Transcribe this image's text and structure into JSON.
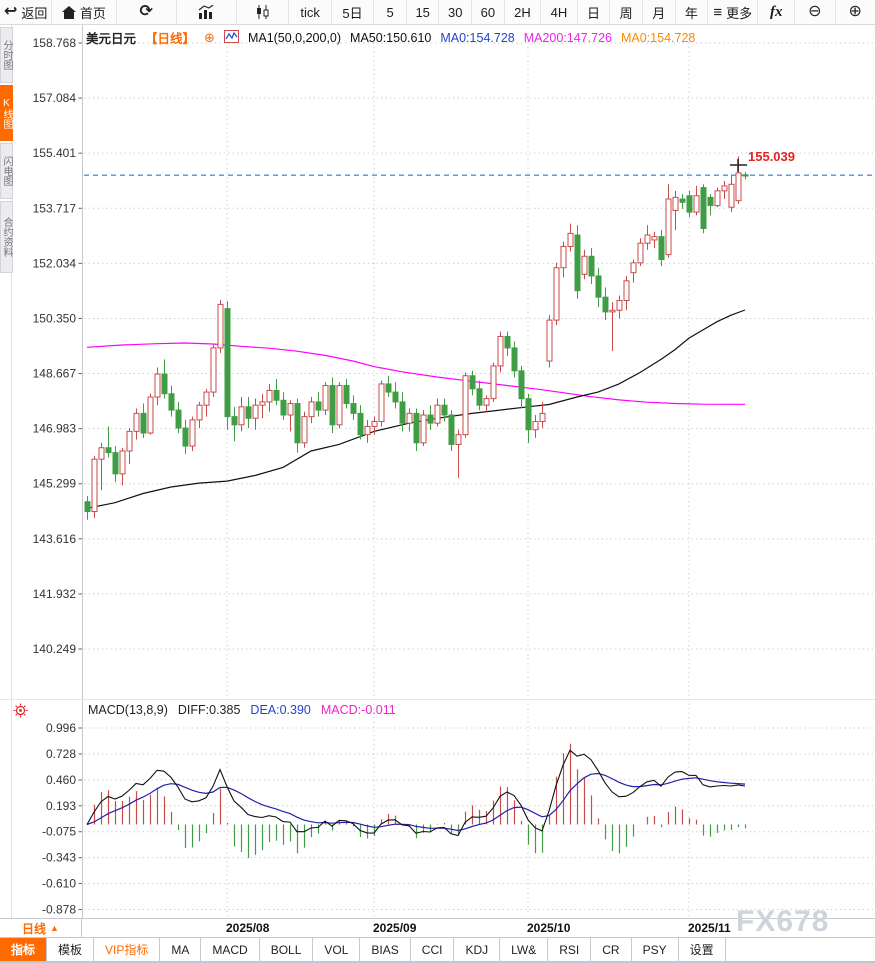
{
  "app": {
    "title": "USDJPY daily candlestick chart"
  },
  "colors": {
    "accent_orange": "#ff6a00",
    "candle_up": "#cb4a4a",
    "candle_down": "#3f9e44",
    "ma50_line": "#111111",
    "ma200_line": "#ff00ff",
    "diff_line": "#111111",
    "dea_line": "#2222aa",
    "price_line_blue": "#4a90e2",
    "price_label_red": "#e22222",
    "grid": "#d0d0d0",
    "watermark": "#cdd4dc"
  },
  "toolbar": {
    "items": [
      {
        "name": "back-button",
        "icon": "back-arrow-icon",
        "label": "返回"
      },
      {
        "name": "home-button",
        "icon": "home-icon",
        "label": "首页"
      },
      {
        "name": "refresh-button",
        "icon": "refresh-icon",
        "label": ""
      },
      {
        "name": "bar-chart-view-button",
        "icon": "bar-chart-icon",
        "label": ""
      },
      {
        "name": "candlestick-view-button",
        "icon": "candlestick-icon",
        "label": ""
      },
      {
        "name": "interval-tick-button",
        "label": "tick"
      },
      {
        "name": "interval-5d-button",
        "label": "5日"
      },
      {
        "name": "interval-5m-button",
        "label": "5"
      },
      {
        "name": "interval-15m-button",
        "label": "15"
      },
      {
        "name": "interval-30m-button",
        "label": "30"
      },
      {
        "name": "interval-60m-button",
        "label": "60"
      },
      {
        "name": "interval-2h-button",
        "label": "2H"
      },
      {
        "name": "interval-4h-button",
        "label": "4H"
      },
      {
        "name": "interval-day-button",
        "label": "日"
      },
      {
        "name": "interval-week-button",
        "label": "周"
      },
      {
        "name": "interval-month-button",
        "label": "月"
      },
      {
        "name": "interval-year-button",
        "label": "年"
      },
      {
        "name": "more-button",
        "icon": "menu-icon",
        "label": "更多"
      },
      {
        "name": "indicator-fx-button",
        "label": "fx",
        "fx": true
      },
      {
        "name": "zoom-out-button",
        "icon": "zoom-out-icon",
        "label": ""
      },
      {
        "name": "zoom-in-button",
        "icon": "zoom-in-icon",
        "label": ""
      }
    ]
  },
  "sidebar": {
    "tabs": [
      {
        "label": "分时图",
        "active": false
      },
      {
        "label": "K线图",
        "active": true
      },
      {
        "label": "闪电图",
        "active": false
      },
      {
        "label": "合约资料",
        "active": false
      }
    ]
  },
  "legend": {
    "symbol": "美元日元",
    "timeframe_tag": "【日线】",
    "add_icon": "⊕",
    "ma_settings": "MA1(50,0,200,0)",
    "ma50_label": "MA50:150.610",
    "ma0_blue_label": "MA0:154.728",
    "ma200_label": "MA200:147.726",
    "ma0_orange_label": "MA0:154.728"
  },
  "macd_panel": {
    "title": "MACD(13,8,9)",
    "diff_label": "DIFF:0.385",
    "dea_label": "DEA:0.390",
    "macd_label": "MACD:-0.011"
  },
  "x_axis": {
    "timeframe_button": "日线",
    "timeframe_arrow": "▲"
  },
  "watermark": "FX678",
  "bottom_tabs": {
    "tabs": [
      {
        "label": "指标",
        "active": true,
        "vip": false
      },
      {
        "label": "模板",
        "active": false,
        "vip": false
      },
      {
        "label": "VIP指标",
        "active": false,
        "vip": true
      },
      {
        "label": "MA",
        "active": false,
        "vip": false
      },
      {
        "label": "MACD",
        "active": false,
        "vip": false
      },
      {
        "label": "BOLL",
        "active": false,
        "vip": false
      },
      {
        "label": "VOL",
        "active": false,
        "vip": false
      },
      {
        "label": "BIAS",
        "active": false,
        "vip": false
      },
      {
        "label": "CCI",
        "active": false,
        "vip": false
      },
      {
        "label": "KDJ",
        "active": false,
        "vip": false
      },
      {
        "label": "LW&",
        "active": false,
        "vip": false
      },
      {
        "label": "RSI",
        "active": false,
        "vip": false
      },
      {
        "label": "CR",
        "active": false,
        "vip": false
      },
      {
        "label": "PSY",
        "active": false,
        "vip": false
      },
      {
        "label": "设置",
        "active": false,
        "vip": false
      }
    ]
  },
  "chart_data": {
    "type": "candlestick",
    "title": "美元日元 日线 (USD/JPY daily)",
    "price_axis_ticks": [
      158.768,
      157.084,
      155.401,
      153.717,
      152.034,
      150.35,
      148.667,
      146.983,
      145.299,
      143.616,
      141.932,
      140.249
    ],
    "macd_axis_ticks": [
      0.996,
      0.728,
      0.46,
      0.193,
      -0.075,
      -0.343,
      -0.61,
      -0.878
    ],
    "price_line": 154.728,
    "latest_price_label": "155.039",
    "latest_price": 155.039,
    "month_labels": [
      {
        "label": "2025/08",
        "index": 20
      },
      {
        "label": "2025/09",
        "index": 41
      },
      {
        "label": "2025/10",
        "index": 63
      },
      {
        "label": "2025/11",
        "index": 86
      }
    ],
    "candles": [
      [
        "07/04",
        144.75,
        144.92,
        144.2,
        144.45
      ],
      [
        "07/07",
        144.45,
        146.15,
        144.25,
        146.05
      ],
      [
        "07/08",
        146.05,
        146.55,
        145.1,
        146.4
      ],
      [
        "07/09",
        146.4,
        147.05,
        146.1,
        146.25
      ],
      [
        "07/10",
        146.25,
        146.45,
        145.35,
        145.6
      ],
      [
        "07/11",
        145.6,
        146.4,
        145.25,
        146.3
      ],
      [
        "07/14",
        146.3,
        147.0,
        145.9,
        146.9
      ],
      [
        "07/15",
        146.9,
        147.6,
        146.65,
        147.45
      ],
      [
        "07/16",
        147.45,
        147.75,
        146.7,
        146.85
      ],
      [
        "07/17",
        146.85,
        148.05,
        146.8,
        147.95
      ],
      [
        "07/18",
        147.95,
        148.85,
        147.7,
        148.65
      ],
      [
        "07/21",
        148.65,
        149.1,
        147.9,
        148.05
      ],
      [
        "07/22",
        148.05,
        148.3,
        147.35,
        147.55
      ],
      [
        "07/23",
        147.55,
        147.8,
        146.85,
        147.0
      ],
      [
        "07/24",
        147.0,
        147.25,
        146.2,
        146.45
      ],
      [
        "07/25",
        146.45,
        147.35,
        146.3,
        147.25
      ],
      [
        "07/28",
        147.25,
        147.8,
        147.0,
        147.7
      ],
      [
        "07/29",
        147.7,
        148.2,
        147.35,
        148.1
      ],
      [
        "07/30",
        148.1,
        149.55,
        147.95,
        149.45
      ],
      [
        "07/31",
        149.45,
        150.92,
        149.3,
        150.78
      ],
      [
        "08/01",
        150.65,
        150.88,
        146.95,
        147.35
      ],
      [
        "08/04",
        147.35,
        147.65,
        146.6,
        147.1
      ],
      [
        "08/05",
        147.1,
        147.95,
        146.9,
        147.65
      ],
      [
        "08/06",
        147.65,
        147.95,
        147.0,
        147.3
      ],
      [
        "08/07",
        147.3,
        147.9,
        146.95,
        147.7
      ],
      [
        "08/08",
        147.7,
        148.05,
        147.3,
        147.8
      ],
      [
        "08/11",
        147.8,
        148.35,
        147.5,
        148.15
      ],
      [
        "08/12",
        148.15,
        148.5,
        147.7,
        147.85
      ],
      [
        "08/13",
        147.85,
        148.1,
        147.25,
        147.4
      ],
      [
        "08/14",
        147.4,
        147.85,
        146.9,
        147.75
      ],
      [
        "08/15",
        147.75,
        147.9,
        146.25,
        146.55
      ],
      [
        "08/18",
        146.55,
        147.5,
        146.4,
        147.35
      ],
      [
        "08/19",
        147.35,
        147.95,
        147.15,
        147.8
      ],
      [
        "08/20",
        147.8,
        148.1,
        147.35,
        147.55
      ],
      [
        "08/21",
        147.55,
        148.4,
        147.4,
        148.3
      ],
      [
        "08/22",
        148.3,
        148.55,
        146.85,
        147.1
      ],
      [
        "08/25",
        147.1,
        148.4,
        147.0,
        148.3
      ],
      [
        "08/26",
        148.3,
        148.5,
        147.6,
        147.75
      ],
      [
        "08/27",
        147.75,
        148.0,
        147.25,
        147.45
      ],
      [
        "08/28",
        147.45,
        147.7,
        146.65,
        146.8
      ],
      [
        "08/29",
        146.8,
        147.25,
        146.55,
        147.05
      ],
      [
        "09/01",
        147.05,
        147.35,
        146.8,
        147.2
      ],
      [
        "09/02",
        147.2,
        148.45,
        147.05,
        148.35
      ],
      [
        "09/03",
        148.35,
        148.6,
        147.95,
        148.1
      ],
      [
        "09/04",
        148.1,
        148.4,
        147.6,
        147.8
      ],
      [
        "09/05",
        147.8,
        148.1,
        146.9,
        147.15
      ],
      [
        "09/08",
        147.15,
        147.6,
        146.9,
        147.45
      ],
      [
        "09/09",
        147.45,
        147.6,
        146.3,
        146.55
      ],
      [
        "09/10",
        146.55,
        147.55,
        146.45,
        147.4
      ],
      [
        "09/11",
        147.4,
        147.7,
        146.95,
        147.15
      ],
      [
        "09/12",
        147.15,
        147.9,
        147.05,
        147.7
      ],
      [
        "09/15",
        147.7,
        147.9,
        147.2,
        147.4
      ],
      [
        "09/16",
        147.4,
        147.55,
        146.3,
        146.5
      ],
      [
        "09/17",
        146.5,
        146.95,
        145.48,
        146.8
      ],
      [
        "09/18",
        146.8,
        148.7,
        146.7,
        148.6
      ],
      [
        "09/19",
        148.6,
        148.75,
        148.0,
        148.2
      ],
      [
        "09/22",
        148.2,
        148.45,
        147.55,
        147.7
      ],
      [
        "09/23",
        147.7,
        148.0,
        147.5,
        147.9
      ],
      [
        "09/24",
        147.9,
        149.0,
        147.8,
        148.9
      ],
      [
        "09/25",
        148.9,
        149.95,
        148.7,
        149.8
      ],
      [
        "09/26",
        149.8,
        149.95,
        149.2,
        149.45
      ],
      [
        "09/29",
        149.45,
        149.65,
        148.55,
        148.75
      ],
      [
        "09/30",
        148.75,
        148.9,
        147.6,
        147.9
      ],
      [
        "10/01",
        147.9,
        148.05,
        146.55,
        146.95
      ],
      [
        "10/02",
        146.95,
        147.4,
        146.7,
        147.2
      ],
      [
        "10/03",
        147.2,
        147.8,
        147.0,
        147.45
      ],
      [
        "10/06",
        149.05,
        150.45,
        148.85,
        150.3
      ],
      [
        "10/07",
        150.3,
        152.05,
        150.15,
        151.9
      ],
      [
        "10/08",
        151.9,
        152.7,
        151.6,
        152.55
      ],
      [
        "10/09",
        152.55,
        153.25,
        152.4,
        152.95
      ],
      [
        "10/10",
        152.9,
        153.2,
        150.95,
        151.2
      ],
      [
        "10/13",
        151.7,
        152.45,
        151.55,
        152.25
      ],
      [
        "10/14",
        152.25,
        152.5,
        151.4,
        151.65
      ],
      [
        "10/15",
        151.65,
        151.9,
        150.7,
        151.0
      ],
      [
        "10/16",
        151.0,
        151.3,
        150.3,
        150.55
      ],
      [
        "10/17",
        150.55,
        150.85,
        149.35,
        150.6
      ],
      [
        "10/20",
        150.6,
        151.05,
        150.35,
        150.9
      ],
      [
        "10/21",
        150.9,
        151.65,
        150.6,
        151.5
      ],
      [
        "10/22",
        151.75,
        152.15,
        151.45,
        152.05
      ],
      [
        "10/23",
        152.05,
        152.8,
        151.95,
        152.65
      ],
      [
        "10/24",
        152.65,
        153.2,
        152.45,
        152.9
      ],
      [
        "10/27",
        152.75,
        153.0,
        152.5,
        152.85
      ],
      [
        "10/28",
        152.85,
        153.05,
        151.95,
        152.15
      ],
      [
        "10/29",
        152.3,
        154.45,
        152.2,
        154.0
      ],
      [
        "10/30",
        153.65,
        154.25,
        153.05,
        154.05
      ],
      [
        "10/31",
        154.0,
        154.15,
        153.7,
        153.9
      ],
      [
        "11/03",
        154.1,
        154.25,
        153.45,
        153.6
      ],
      [
        "11/04",
        153.6,
        154.4,
        153.5,
        154.1
      ],
      [
        "11/05",
        154.35,
        154.45,
        152.95,
        153.1
      ],
      [
        "11/06",
        154.05,
        154.15,
        153.5,
        153.8
      ],
      [
        "11/07",
        153.8,
        154.35,
        153.75,
        154.25
      ],
      [
        "11/10",
        154.25,
        154.55,
        154.0,
        154.4
      ],
      [
        "11/11",
        153.75,
        154.75,
        153.6,
        154.45
      ],
      [
        "11/12",
        153.95,
        155.3,
        153.85,
        154.8
      ],
      [
        "11/13",
        154.74,
        154.83,
        154.6,
        154.728
      ]
    ],
    "ma50_points": [
      [
        0,
        144.55
      ],
      [
        4,
        144.72
      ],
      [
        8,
        145.0
      ],
      [
        12,
        145.2
      ],
      [
        16,
        145.32
      ],
      [
        20,
        145.38
      ],
      [
        24,
        145.55
      ],
      [
        28,
        145.8
      ],
      [
        32,
        146.3
      ],
      [
        36,
        146.5
      ],
      [
        41,
        146.9
      ],
      [
        46,
        147.15
      ],
      [
        50,
        147.3
      ],
      [
        55,
        147.45
      ],
      [
        59,
        147.55
      ],
      [
        63,
        147.65
      ],
      [
        66,
        147.72
      ],
      [
        70,
        147.95
      ],
      [
        73,
        148.1
      ],
      [
        76,
        148.35
      ],
      [
        79,
        148.7
      ],
      [
        82,
        149.1
      ],
      [
        84,
        149.4
      ],
      [
        86,
        149.75
      ],
      [
        88,
        150.0
      ],
      [
        90,
        150.25
      ],
      [
        92,
        150.45
      ],
      [
        94,
        150.61
      ]
    ],
    "ma200_points": [
      [
        0,
        149.47
      ],
      [
        5,
        149.54
      ],
      [
        10,
        149.58
      ],
      [
        14,
        149.6
      ],
      [
        18,
        149.57
      ],
      [
        22,
        149.5
      ],
      [
        26,
        149.44
      ],
      [
        30,
        149.35
      ],
      [
        34,
        149.22
      ],
      [
        38,
        149.05
      ],
      [
        41,
        148.88
      ],
      [
        45,
        148.72
      ],
      [
        50,
        148.56
      ],
      [
        55,
        148.43
      ],
      [
        60,
        148.3
      ],
      [
        64,
        148.2
      ],
      [
        68,
        148.08
      ],
      [
        72,
        147.96
      ],
      [
        76,
        147.86
      ],
      [
        80,
        147.79
      ],
      [
        84,
        147.75
      ],
      [
        88,
        147.73
      ],
      [
        94,
        147.726
      ]
    ],
    "macd": {
      "params_label": "MACD(13,8,9)",
      "fast": 8,
      "slow": 13,
      "signal": 9,
      "diff": 0.385,
      "dea": 0.39,
      "hist": -0.011
    },
    "legend_position": "top-left",
    "grid": true
  }
}
